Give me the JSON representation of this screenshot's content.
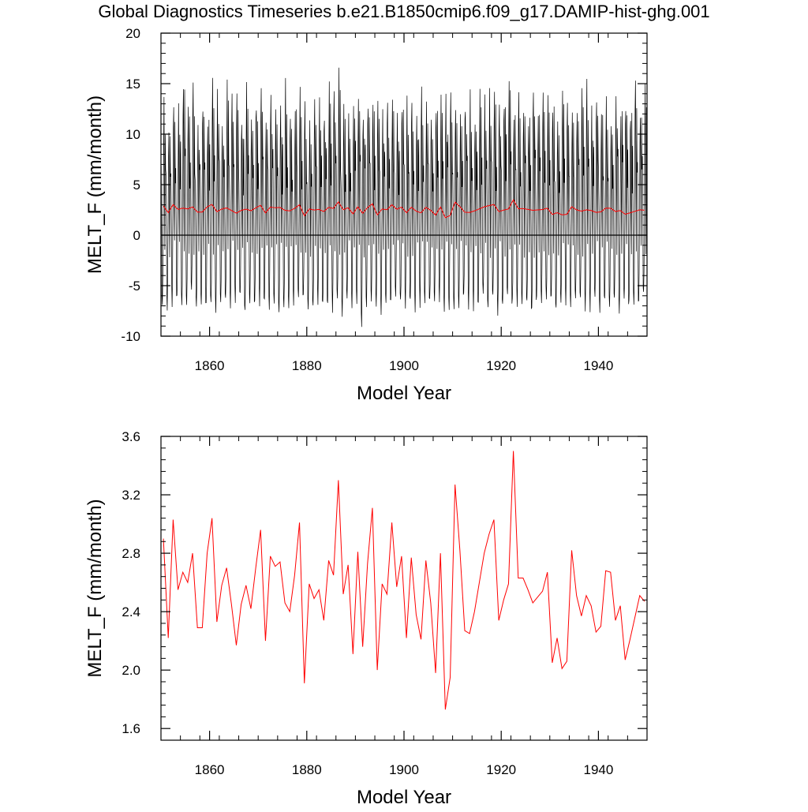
{
  "figure": {
    "title": "Global Diagnostics Timeseries b.e21.B1850cmip6.f09_g17.DAMIP-hist-ghg.001"
  },
  "colors": {
    "monthly_series": "#000000",
    "annual_series": "#ff0000",
    "axes": "#000000"
  },
  "chart_data": [
    {
      "type": "line",
      "title": "",
      "xlabel": "Model Year",
      "ylabel": "MELT_F (mm/month)",
      "xlim": [
        1850,
        1950
      ],
      "ylim": [
        -10,
        20
      ],
      "xticks": [
        1860,
        1880,
        1900,
        1920,
        1940
      ],
      "xtick_labels": [
        "1860",
        "1880",
        "1900",
        "1920",
        "1940"
      ],
      "yticks": [
        -10,
        -5,
        0,
        5,
        10,
        15,
        20
      ],
      "ytick_labels": [
        "-10",
        "-5",
        "0",
        "5",
        "10",
        "15",
        "20"
      ],
      "reference_line": 0,
      "monthly_amplitude": {
        "peak": [
          12.5,
          10.2,
          13.4,
          11.8,
          16.1,
          12.9,
          14.6,
          11.3,
          13.0,
          12.2,
          16.4,
          13.6,
          12.1,
          14.0,
          12.7,
          13.1,
          11.9,
          14.3,
          12.5,
          13.7,
          15.6,
          12.0,
          13.2,
          12.8,
          11.6,
          13.9,
          12.4,
          12.9,
          13.3,
          12.6,
          11.8,
          13.4,
          12.5,
          12.7,
          14.2,
          13.6,
          16.8,
          12.3,
          13.1,
          12.8,
          14.1,
          11.9,
          13.5,
          12.6,
          14.5,
          12.2,
          13.0,
          12.9,
          11.7,
          13.4,
          12.8,
          13.6,
          12.1,
          14.2,
          12.5,
          11.9,
          13.3,
          13.0,
          12.6,
          14.9,
          12.4,
          12.9,
          13.5,
          13.2,
          12.0,
          14.1,
          12.6,
          13.7,
          13.3,
          12.5,
          14.2,
          14.9,
          13.0,
          12.7,
          13.5,
          12.1,
          13.9,
          12.6,
          13.2,
          12.8,
          13.6,
          12.3,
          13.4,
          12.9,
          13.1,
          12.5,
          13.8,
          14.0,
          12.4,
          13.0,
          12.6,
          13.5,
          12.2,
          14.3,
          12.8,
          13.3,
          12.7,
          15.5,
          13.2,
          15.2
        ],
        "trough": [
          -6.5,
          -7.0,
          -6.6,
          -6.4,
          -7.2,
          -6.9,
          -6.1,
          -7.5,
          -6.8,
          -7.3,
          -6.6,
          -7.0,
          -6.4,
          -6.9,
          -7.1,
          -6.8,
          -6.5,
          -7.2,
          -6.6,
          -6.9,
          -6.3,
          -7.1,
          -6.8,
          -6.5,
          -7.0,
          -6.7,
          -6.9,
          -6.2,
          -7.0,
          -6.6,
          -7.4,
          -6.8,
          -6.5,
          -7.0,
          -6.7,
          -7.2,
          -6.4,
          -7.6,
          -6.9,
          -6.6,
          -7.1,
          -8.4,
          -6.8,
          -7.0,
          -6.5,
          -7.3,
          -6.7,
          -6.9,
          -6.4,
          -7.1,
          -6.6,
          -7.0,
          -6.8,
          -6.5,
          -7.2,
          -6.7,
          -6.9,
          -6.3,
          -7.0,
          -6.6,
          -7.3,
          -6.8,
          -6.5,
          -7.1,
          -6.7,
          -6.9,
          -6.4,
          -7.0,
          -6.6,
          -7.2,
          -6.8,
          -6.5,
          -7.0,
          -6.7,
          -6.9,
          -6.4,
          -7.5,
          -6.6,
          -7.0,
          -6.8,
          -6.5,
          -7.2,
          -6.7,
          -6.9,
          -6.4,
          -7.0,
          -6.6,
          -7.1,
          -6.8,
          -6.5,
          -7.0,
          -6.7,
          -6.9,
          -6.4,
          -7.2,
          -6.6,
          -7.0,
          -6.5,
          -6.8,
          -5.9
        ]
      },
      "series": [
        {
          "style": "thin",
          "values_ref": "chart_data.1.series.0.values"
        }
      ]
    },
    {
      "type": "line",
      "title": "",
      "xlabel": "Model Year",
      "ylabel": "MELT_F (mm/month)",
      "xlim": [
        1850,
        1950
      ],
      "ylim": [
        1.52,
        3.6
      ],
      "xticks": [
        1860,
        1880,
        1900,
        1920,
        1940
      ],
      "xtick_labels": [
        "1860",
        "1880",
        "1900",
        "1920",
        "1940"
      ],
      "yticks": [
        1.6,
        2.0,
        2.4,
        2.8,
        3.2,
        3.6
      ],
      "ytick_labels": [
        "1.6",
        "2.0",
        "2.4",
        "2.8",
        "3.2",
        "3.6"
      ],
      "x": [
        1850.5,
        1851.5,
        1852.5,
        1853.5,
        1854.5,
        1855.5,
        1856.5,
        1857.5,
        1858.5,
        1859.5,
        1860.5,
        1861.5,
        1862.5,
        1863.5,
        1864.5,
        1865.5,
        1866.5,
        1867.5,
        1868.5,
        1869.5,
        1870.5,
        1871.5,
        1872.5,
        1873.5,
        1874.5,
        1875.5,
        1876.5,
        1877.5,
        1878.5,
        1879.5,
        1880.5,
        1881.5,
        1882.5,
        1883.5,
        1884.5,
        1885.5,
        1886.5,
        1887.5,
        1888.5,
        1889.5,
        1890.5,
        1891.5,
        1892.5,
        1893.5,
        1894.5,
        1895.5,
        1896.5,
        1897.5,
        1898.5,
        1899.5,
        1900.5,
        1901.5,
        1902.5,
        1903.5,
        1904.5,
        1905.5,
        1906.5,
        1907.5,
        1908.5,
        1909.5,
        1910.5,
        1911.5,
        1912.5,
        1913.5,
        1914.5,
        1915.5,
        1916.5,
        1917.5,
        1918.5,
        1919.5,
        1920.5,
        1921.5,
        1922.5,
        1923.5,
        1924.5,
        1925.5,
        1926.5,
        1927.5,
        1928.5,
        1929.5,
        1930.5,
        1931.5,
        1932.5,
        1933.5,
        1934.5,
        1935.5,
        1936.5,
        1937.5,
        1938.5,
        1939.5,
        1940.5,
        1941.5,
        1942.5,
        1943.5,
        1944.5,
        1945.5,
        1946.5,
        1947.5,
        1948.5,
        1949.5
      ],
      "series": [
        {
          "values": [
            2.9,
            2.22,
            3.03,
            2.55,
            2.67,
            2.6,
            2.8,
            2.29,
            2.29,
            2.8,
            3.04,
            2.33,
            2.58,
            2.7,
            2.45,
            2.17,
            2.45,
            2.58,
            2.42,
            2.7,
            2.96,
            2.2,
            2.78,
            2.71,
            2.74,
            2.46,
            2.4,
            2.65,
            3.01,
            1.91,
            2.59,
            2.49,
            2.55,
            2.34,
            2.75,
            2.65,
            3.3,
            2.52,
            2.72,
            2.11,
            2.81,
            2.16,
            2.73,
            3.11,
            2.0,
            2.59,
            2.52,
            3.01,
            2.57,
            2.78,
            2.22,
            2.77,
            2.38,
            2.21,
            2.75,
            2.46,
            1.98,
            2.8,
            1.73,
            1.95,
            3.27,
            2.82,
            2.27,
            2.25,
            2.4,
            2.6,
            2.8,
            2.93,
            3.03,
            2.34,
            2.48,
            2.59,
            3.5,
            2.63,
            2.63,
            2.55,
            2.46,
            2.5,
            2.54,
            2.67,
            2.05,
            2.22,
            2.01,
            2.06,
            2.82,
            2.51,
            2.37,
            2.51,
            2.44,
            2.26,
            2.3,
            2.68,
            2.67,
            2.34,
            2.44,
            2.07,
            2.21,
            2.36,
            2.51,
            2.47
          ]
        }
      ]
    }
  ]
}
